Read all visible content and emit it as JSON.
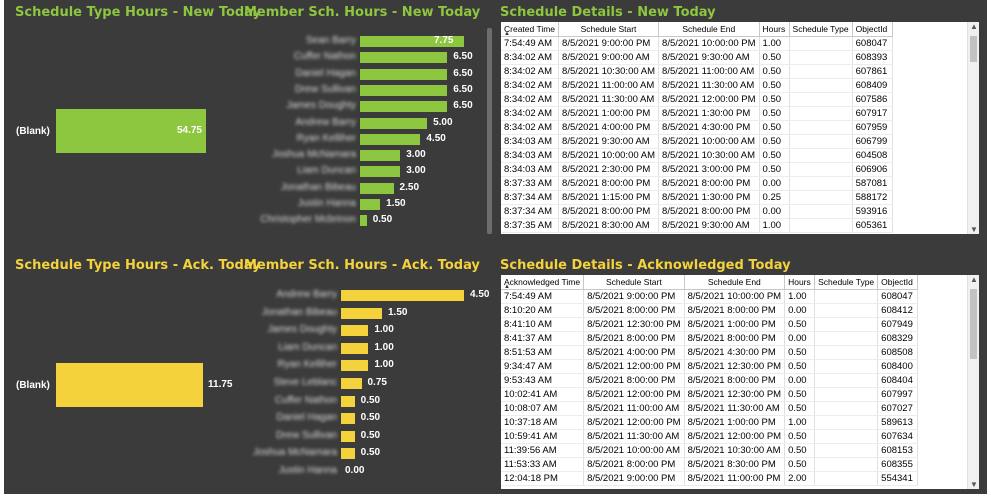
{
  "colors": {
    "green": "#8dc63f",
    "yellow": "#f3d23c",
    "background": "#3b3b3b"
  },
  "new_today": {
    "type_title": "Schedule Type Hours - New Today",
    "type_bar": {
      "label": "(Blank)",
      "value": "54.75"
    },
    "member_title": "Member Sch. Hours - New Today",
    "members": [
      {
        "name": "Sean Barry",
        "value": 7.75,
        "label": "7.75"
      },
      {
        "name": "Cuffer Nathon",
        "value": 6.5,
        "label": "6.50"
      },
      {
        "name": "Daniel Hagan",
        "value": 6.5,
        "label": "6.50"
      },
      {
        "name": "Drew Sullivan",
        "value": 6.5,
        "label": "6.50"
      },
      {
        "name": "James Doughty",
        "value": 6.5,
        "label": "6.50"
      },
      {
        "name": "Andrew Barry",
        "value": 5.0,
        "label": "5.00"
      },
      {
        "name": "Ryan Kelliher",
        "value": 4.5,
        "label": "4.50"
      },
      {
        "name": "Joshua McNamara",
        "value": 3.0,
        "label": "3.00"
      },
      {
        "name": "Liam Duncan",
        "value": 3.0,
        "label": "3.00"
      },
      {
        "name": "Jonathan Bibeau",
        "value": 2.5,
        "label": "2.50"
      },
      {
        "name": "Justin Hanna",
        "value": 1.5,
        "label": "1.50"
      },
      {
        "name": "Christopher Mcbrinon",
        "value": 0.5,
        "label": "0.50"
      }
    ],
    "details_title": "Schedule Details - New Today",
    "columns": [
      "Created Time",
      "Schedule Start",
      "Schedule End",
      "Hours",
      "Schedule Type",
      "ObjectId"
    ],
    "rows": [
      [
        "7:54:49 AM",
        "8/5/2021 9:00:00 PM",
        "8/5/2021 10:00:00 PM",
        "1.00",
        "",
        "608047"
      ],
      [
        "8:34:02 AM",
        "8/5/2021 9:00:00 AM",
        "8/5/2021 9:30:00 AM",
        "0.50",
        "",
        "608393"
      ],
      [
        "8:34:02 AM",
        "8/5/2021 10:30:00 AM",
        "8/5/2021 11:00:00 AM",
        "0.50",
        "",
        "607861"
      ],
      [
        "8:34:02 AM",
        "8/5/2021 11:00:00 AM",
        "8/5/2021 11:30:00 AM",
        "0.50",
        "",
        "608409"
      ],
      [
        "8:34:02 AM",
        "8/5/2021 11:30:00 AM",
        "8/5/2021 12:00:00 PM",
        "0.50",
        "",
        "607586"
      ],
      [
        "8:34:02 AM",
        "8/5/2021 1:00:00 PM",
        "8/5/2021 1:30:00 PM",
        "0.50",
        "",
        "607917"
      ],
      [
        "8:34:02 AM",
        "8/5/2021 4:00:00 PM",
        "8/5/2021 4:30:00 PM",
        "0.50",
        "",
        "607959"
      ],
      [
        "8:34:03 AM",
        "8/5/2021 9:30:00 AM",
        "8/5/2021 10:00:00 AM",
        "0.50",
        "",
        "606799"
      ],
      [
        "8:34:03 AM",
        "8/5/2021 10:00:00 AM",
        "8/5/2021 10:30:00 AM",
        "0.50",
        "",
        "604508"
      ],
      [
        "8:34:03 AM",
        "8/5/2021 2:30:00 PM",
        "8/5/2021 3:00:00 PM",
        "0.50",
        "",
        "606906"
      ],
      [
        "8:37:33 AM",
        "8/5/2021 8:00:00 PM",
        "8/5/2021 8:00:00 PM",
        "0.00",
        "",
        "587081"
      ],
      [
        "8:37:34 AM",
        "8/5/2021 1:15:00 PM",
        "8/5/2021 1:30:00 PM",
        "0.25",
        "",
        "588172"
      ],
      [
        "8:37:34 AM",
        "8/5/2021 8:00:00 PM",
        "8/5/2021 8:00:00 PM",
        "0.00",
        "",
        "593916"
      ],
      [
        "8:37:35 AM",
        "8/5/2021 8:30:00 AM",
        "8/5/2021 9:30:00 AM",
        "1.00",
        "",
        "605361"
      ]
    ]
  },
  "ack_today": {
    "type_title": "Schedule Type Hours - Ack. Today",
    "type_bar": {
      "label": "(Blank)",
      "value": "11.75"
    },
    "member_title": "Member Sch. Hours - Ack. Today",
    "members": [
      {
        "name": "Andrew Barry",
        "value": 4.5,
        "label": "4.50"
      },
      {
        "name": "Jonathan Bibeau",
        "value": 1.5,
        "label": "1.50"
      },
      {
        "name": "James Doughty",
        "value": 1.0,
        "label": "1.00"
      },
      {
        "name": "Liam Duncan",
        "value": 1.0,
        "label": "1.00"
      },
      {
        "name": "Ryan Kelliher",
        "value": 1.0,
        "label": "1.00"
      },
      {
        "name": "Steve Leblanc",
        "value": 0.75,
        "label": "0.75"
      },
      {
        "name": "Cuffer Nathon",
        "value": 0.5,
        "label": "0.50"
      },
      {
        "name": "Daniel Hagan",
        "value": 0.5,
        "label": "0.50"
      },
      {
        "name": "Drew Sullivan",
        "value": 0.5,
        "label": "0.50"
      },
      {
        "name": "Joshua McNamara",
        "value": 0.5,
        "label": "0.50"
      },
      {
        "name": "Justin Hanna",
        "value": 0.0,
        "label": "0.00"
      }
    ],
    "details_title": "Schedule Details - Acknowledged Today",
    "columns": [
      "Acknowledged Time",
      "Schedule Start",
      "Schedule End",
      "Hours",
      "Schedule Type",
      "ObjectId"
    ],
    "rows": [
      [
        "7:54:49 AM",
        "8/5/2021 9:00:00 PM",
        "8/5/2021 10:00:00 PM",
        "1.00",
        "",
        "608047"
      ],
      [
        "8:10:20 AM",
        "8/5/2021 8:00:00 PM",
        "8/5/2021 8:00:00 PM",
        "0.00",
        "",
        "608412"
      ],
      [
        "8:41:10 AM",
        "8/5/2021 12:30:00 PM",
        "8/5/2021 1:00:00 PM",
        "0.50",
        "",
        "607949"
      ],
      [
        "8:41:37 AM",
        "8/5/2021 8:00:00 PM",
        "8/5/2021 8:00:00 PM",
        "0.00",
        "",
        "608329"
      ],
      [
        "8:51:53 AM",
        "8/5/2021 4:00:00 PM",
        "8/5/2021 4:30:00 PM",
        "0.50",
        "",
        "608508"
      ],
      [
        "9:34:47 AM",
        "8/5/2021 12:00:00 PM",
        "8/5/2021 12:30:00 PM",
        "0.50",
        "",
        "608400"
      ],
      [
        "9:53:43 AM",
        "8/5/2021 8:00:00 PM",
        "8/5/2021 8:00:00 PM",
        "0.00",
        "",
        "608404"
      ],
      [
        "10:02:41 AM",
        "8/5/2021 12:00:00 PM",
        "8/5/2021 12:30:00 PM",
        "0.50",
        "",
        "607997"
      ],
      [
        "10:08:07 AM",
        "8/5/2021 11:00:00 AM",
        "8/5/2021 11:30:00 AM",
        "0.50",
        "",
        "607027"
      ],
      [
        "10:37:18 AM",
        "8/5/2021 12:00:00 PM",
        "8/5/2021 1:00:00 PM",
        "1.00",
        "",
        "589613"
      ],
      [
        "10:59:41 AM",
        "8/5/2021 11:30:00 AM",
        "8/5/2021 12:00:00 PM",
        "0.50",
        "",
        "607634"
      ],
      [
        "11:39:56 AM",
        "8/5/2021 10:00:00 AM",
        "8/5/2021 10:30:00 AM",
        "0.50",
        "",
        "608153"
      ],
      [
        "11:53:33 AM",
        "8/5/2021 8:00:00 PM",
        "8/5/2021 8:30:00 PM",
        "0.50",
        "",
        "608355"
      ],
      [
        "12:04:18 PM",
        "8/5/2021 9:00:00 PM",
        "8/5/2021 11:00:00 PM",
        "2.00",
        "",
        "554341"
      ]
    ]
  }
}
